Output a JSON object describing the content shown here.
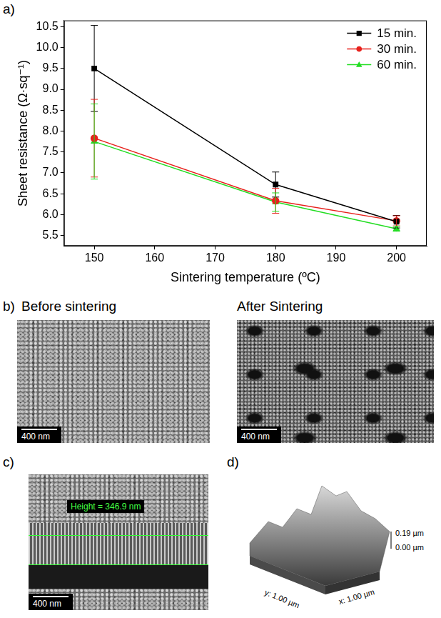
{
  "chart_data": {
    "type": "line",
    "x_label": "Sintering temperature (ºC)",
    "y_label": "Sheet resistance (Ω·sq⁻¹)",
    "x": [
      150,
      180,
      200
    ],
    "xlim": [
      145,
      205
    ],
    "xticks": [
      150,
      160,
      170,
      180,
      190,
      200
    ],
    "ylim": [
      5.25,
      10.65
    ],
    "yticks": [
      {
        "value": 5.5,
        "label": "5.5"
      },
      {
        "value": 6,
        "label": "6.0"
      },
      {
        "value": 6.5,
        "label": "6.5"
      },
      {
        "value": 7,
        "label": "7.0"
      },
      {
        "value": 7.5,
        "label": "7.5"
      },
      {
        "value": 8,
        "label": "8.0"
      },
      {
        "value": 8.5,
        "label": "8.5"
      },
      {
        "value": 9,
        "label": "9.0"
      },
      {
        "value": 9.5,
        "label": "9.5"
      },
      {
        "value": 10,
        "label": "10.0"
      },
      {
        "value": 10.5,
        "label": "10.5"
      }
    ],
    "grid": false,
    "legend": "upper right",
    "series": [
      {
        "name": "15 min.",
        "color": "#000000",
        "marker": "square",
        "values": [
          9.5,
          6.72,
          5.83
        ],
        "errors": [
          1.03,
          0.3,
          0.15
        ]
      },
      {
        "name": "30 min.",
        "color": "#e8211c",
        "marker": "circle",
        "values": [
          7.83,
          6.33,
          5.85
        ],
        "errors": [
          0.93,
          0.3,
          0.12
        ]
      },
      {
        "name": "60 min.",
        "color": "#22dd22",
        "marker": "triangle",
        "values": [
          7.75,
          6.3,
          5.66
        ],
        "errors": [
          0.9,
          0.22,
          0.06
        ]
      }
    ]
  },
  "panels": {
    "a": {
      "label": "a)"
    },
    "b": {
      "label": "b)",
      "images": [
        {
          "title": "Before sintering",
          "scale_bar": "400 nm"
        },
        {
          "title": "After Sintering",
          "scale_bar": "400 nm"
        }
      ]
    },
    "c": {
      "label": "c)",
      "scale_bar": "400 nm",
      "annotation": "Height = 346.9 nm"
    },
    "d": {
      "label": "d)",
      "z_labels": [
        "0.19 µm",
        "0.00 µm"
      ],
      "y_label": "y: 1.00 µm",
      "x_label": "x: 1.00 µm"
    }
  }
}
